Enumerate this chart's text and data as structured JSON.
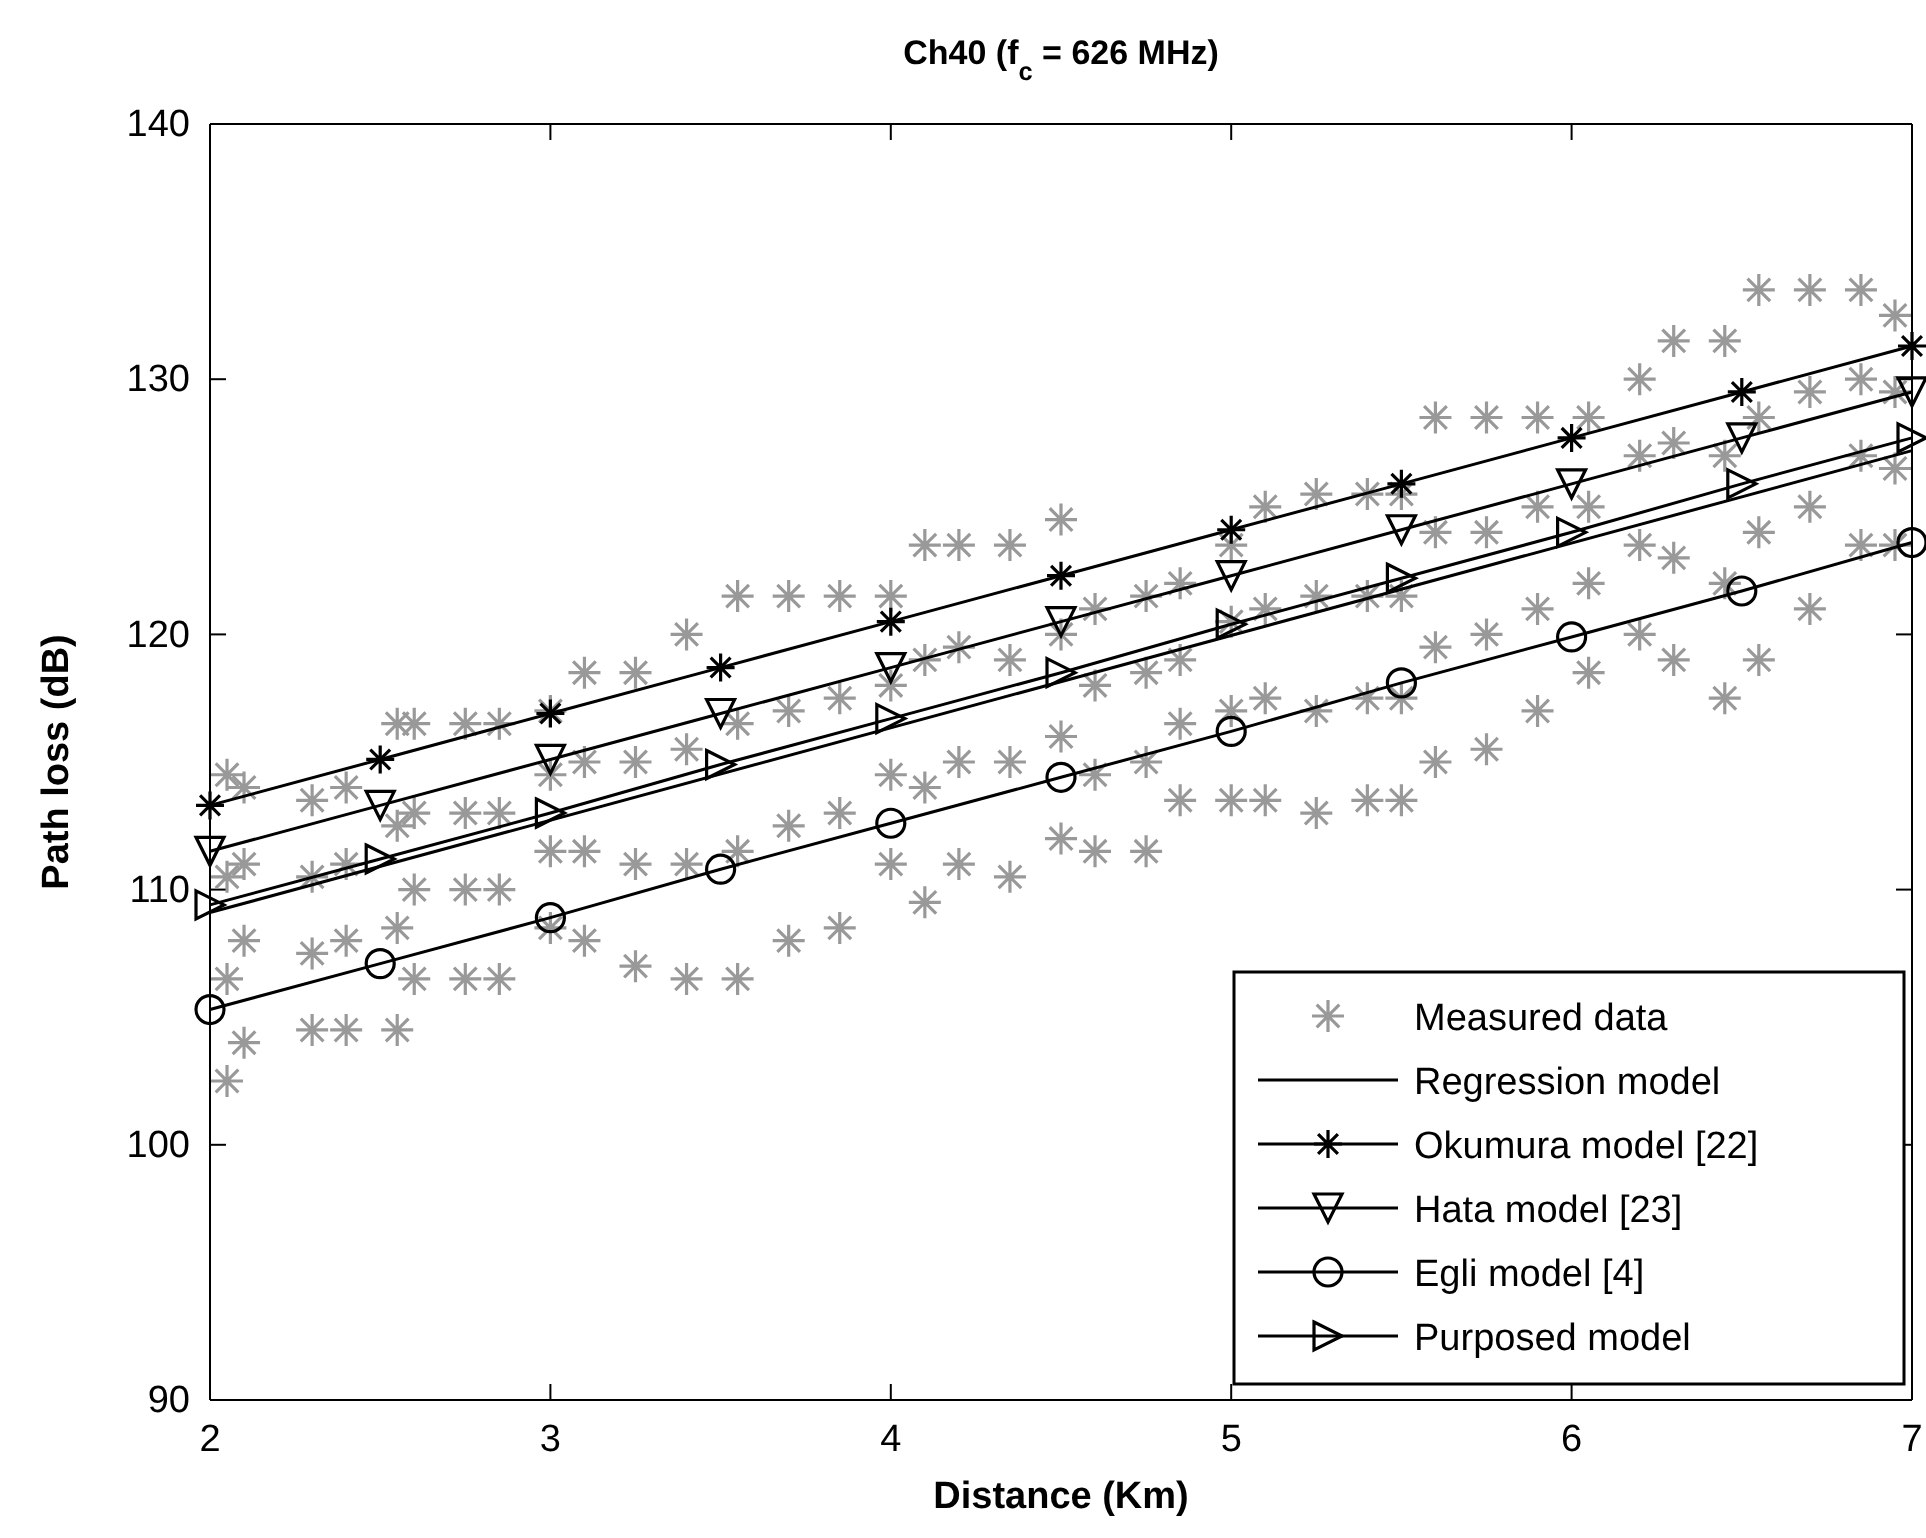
{
  "chart_data": {
    "type": "line",
    "title": "Ch40 (f$_{c}$ = 626 MHz)",
    "xlabel": "Distance (Km)",
    "ylabel": "Path loss (dB)",
    "xlim": [
      2,
      7
    ],
    "xticks": [
      2,
      3,
      4,
      5,
      6,
      7
    ],
    "ylim": [
      90,
      140
    ],
    "yticks": [
      90,
      100,
      110,
      120,
      130,
      140
    ],
    "grid": false,
    "legend": "bottom right",
    "series": [
      {
        "name": "Measured data",
        "type": "scatter",
        "marker": "cross",
        "color": "#999999",
        "x": [
          2.05,
          2.05,
          2.05,
          2.05,
          2.1,
          2.1,
          2.1,
          2.1,
          2.3,
          2.3,
          2.3,
          2.3,
          2.4,
          2.4,
          2.4,
          2.4,
          2.55,
          2.55,
          2.55,
          2.55,
          2.6,
          2.6,
          2.6,
          2.6,
          2.75,
          2.75,
          2.75,
          2.75,
          2.85,
          2.85,
          2.85,
          2.85,
          3.0,
          3.0,
          3.0,
          3.0,
          3.1,
          3.1,
          3.1,
          3.1,
          3.25,
          3.25,
          3.25,
          3.25,
          3.4,
          3.4,
          3.4,
          3.4,
          3.55,
          3.55,
          3.55,
          3.55,
          3.7,
          3.7,
          3.7,
          3.7,
          3.85,
          3.85,
          3.85,
          3.85,
          4.0,
          4.0,
          4.0,
          4.0,
          4.1,
          4.1,
          4.1,
          4.1,
          4.2,
          4.2,
          4.2,
          4.2,
          4.35,
          4.35,
          4.35,
          4.35,
          4.5,
          4.5,
          4.5,
          4.5,
          4.6,
          4.6,
          4.6,
          4.6,
          4.75,
          4.75,
          4.75,
          4.75,
          4.85,
          4.85,
          4.85,
          4.85,
          5.0,
          5.0,
          5.0,
          5.0,
          5.1,
          5.1,
          5.1,
          5.1,
          5.25,
          5.25,
          5.25,
          5.25,
          5.4,
          5.4,
          5.4,
          5.4,
          5.5,
          5.5,
          5.5,
          5.5,
          5.6,
          5.6,
          5.6,
          5.6,
          5.75,
          5.75,
          5.75,
          5.75,
          5.9,
          5.9,
          5.9,
          5.9,
          6.05,
          6.05,
          6.05,
          6.05,
          6.2,
          6.2,
          6.2,
          6.2,
          6.3,
          6.3,
          6.3,
          6.3,
          6.45,
          6.45,
          6.45,
          6.45,
          6.55,
          6.55,
          6.55,
          6.55,
          6.7,
          6.7,
          6.7,
          6.7,
          6.85,
          6.85,
          6.85,
          6.85,
          6.95,
          6.95,
          6.95,
          6.95
        ],
        "values": [
          102.5,
          106.5,
          110.5,
          114.5,
          104,
          108,
          111,
          114,
          104.5,
          107.5,
          110.5,
          113.5,
          104.5,
          108,
          111,
          114,
          104.5,
          108.5,
          112.5,
          116.5,
          106.5,
          110,
          113,
          116.5,
          106.5,
          110,
          113,
          116.5,
          106.5,
          110,
          113,
          116.5,
          108.5,
          111.5,
          114.5,
          117,
          108,
          111.5,
          115,
          118.5,
          107,
          111,
          115,
          118.5,
          106.5,
          111,
          115.5,
          120,
          106.5,
          111.5,
          116.5,
          121.5,
          108,
          112.5,
          117,
          121.5,
          108.5,
          113,
          117.5,
          121.5,
          111,
          114.5,
          118,
          121.5,
          109.5,
          114,
          119,
          123.5,
          111,
          115,
          119.5,
          123.5,
          110.5,
          115,
          119,
          123.5,
          112,
          116,
          120,
          124.5,
          111.5,
          114.5,
          118,
          121,
          111.5,
          115,
          118.5,
          121.5,
          113.5,
          116.5,
          119,
          122,
          113.5,
          117,
          120.5,
          123.5,
          113.5,
          117.5,
          121,
          125,
          113,
          117,
          121.5,
          125.5,
          113.5,
          117.5,
          121.5,
          125.5,
          113.5,
          117.5,
          121.5,
          125.5,
          115,
          119.5,
          124,
          128.5,
          115.5,
          120,
          124,
          128.5,
          117,
          121,
          125,
          128.5,
          118.5,
          122,
          125,
          128.5,
          120,
          123.5,
          127,
          130,
          119,
          123,
          127.5,
          131.5,
          117.5,
          122,
          127,
          131.5,
          119,
          124,
          128.5,
          133.5,
          121,
          125,
          129.5,
          133.5,
          123.5,
          127,
          130,
          133.5,
          123.5,
          126.5,
          129.5,
          132.5
        ]
      },
      {
        "name": "Regression model",
        "marker": "none",
        "color": "#000000",
        "x": [
          2,
          7
        ],
        "values": [
          109.1,
          127.2
        ]
      },
      {
        "name": "Okumura model [22]",
        "marker": "cross",
        "color": "#000000",
        "x": [
          2,
          2.5,
          3,
          3.5,
          4,
          4.5,
          5,
          5.5,
          6,
          6.5,
          7
        ],
        "values": [
          113.3,
          115.1,
          116.9,
          118.7,
          120.5,
          122.3,
          124.1,
          125.9,
          127.7,
          129.5,
          131.3
        ]
      },
      {
        "name": "Hata model [23]",
        "marker": "triangle-down",
        "color": "#000000",
        "x": [
          2,
          2.5,
          3,
          3.5,
          4,
          4.5,
          5,
          5.5,
          6,
          6.5,
          7
        ],
        "values": [
          111.5,
          113.3,
          115.1,
          116.9,
          118.7,
          120.5,
          122.3,
          124.1,
          125.9,
          127.7,
          129.5
        ]
      },
      {
        "name": "Egli model [4]",
        "marker": "circle",
        "color": "#000000",
        "x": [
          2,
          2.5,
          3,
          3.5,
          4,
          4.5,
          5,
          5.5,
          6,
          6.5,
          7
        ],
        "values": [
          105.3,
          107.1,
          108.9,
          110.8,
          112.6,
          114.4,
          116.2,
          118.1,
          119.9,
          121.7,
          123.6
        ]
      },
      {
        "name": "Purposed model",
        "marker": "triangle-right",
        "color": "#000000",
        "x": [
          2,
          2.5,
          3,
          3.5,
          4,
          4.5,
          5,
          5.5,
          6,
          6.5,
          7
        ],
        "values": [
          109.4,
          111.2,
          113.0,
          114.9,
          116.7,
          118.5,
          120.4,
          122.2,
          124.0,
          125.9,
          127.7
        ]
      }
    ]
  }
}
